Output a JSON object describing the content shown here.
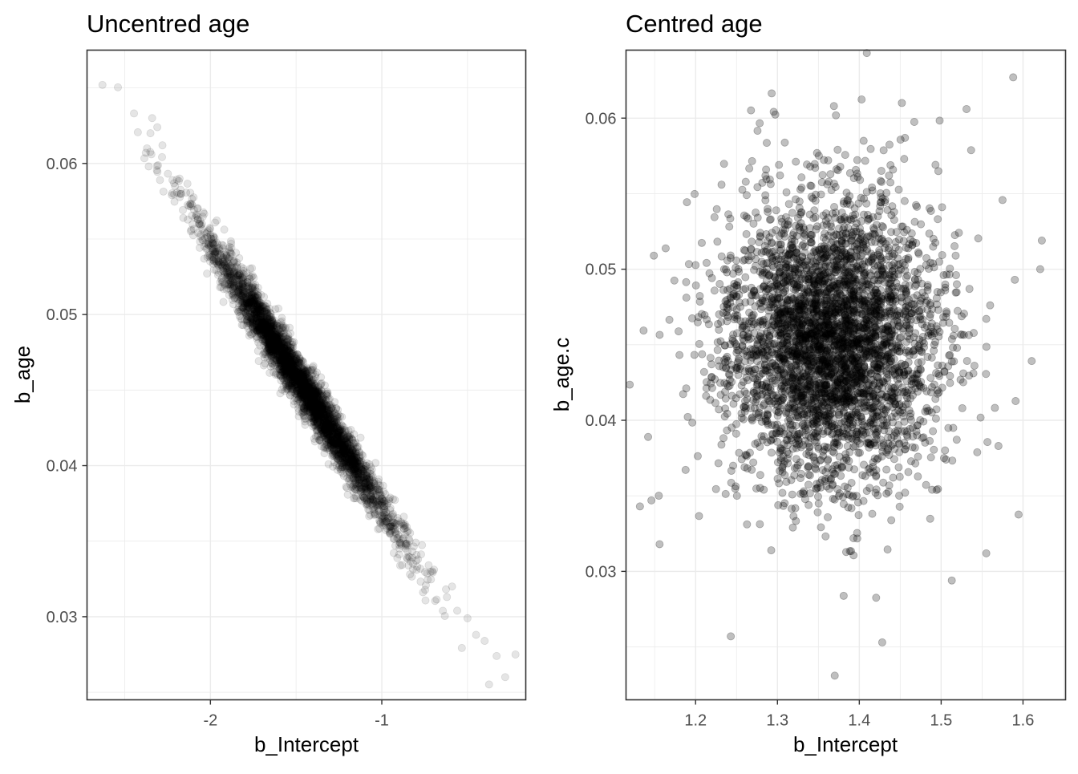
{
  "chart_data": [
    {
      "type": "scatter",
      "title": "Uncentred age",
      "xlabel": "b_Intercept",
      "ylabel": "b_age",
      "xlim": [
        -2.72,
        -0.16
      ],
      "ylim": [
        0.0245,
        0.0675
      ],
      "x_ticks": [
        -2,
        -1
      ],
      "x_tick_labels": [
        "-2",
        "-1"
      ],
      "y_ticks": [
        0.03,
        0.04,
        0.05,
        0.06
      ],
      "y_tick_labels": [
        "0.03",
        "0.04",
        "0.05",
        "0.06"
      ],
      "grid": true,
      "point_color": "#000000",
      "point_alpha": 0.1,
      "distribution": {
        "center": [
          -1.47,
          0.0454
        ],
        "n_points": 4000,
        "sd_x": 0.27,
        "sd_y": 0.0048,
        "correlation": -0.985
      },
      "points": [
        {
          "x": -2.63,
          "y": 0.0652
        },
        {
          "x": -2.34,
          "y": 0.063
        },
        {
          "x": -2.35,
          "y": 0.062
        },
        {
          "x": -2.31,
          "y": 0.0624
        },
        {
          "x": -2.37,
          "y": 0.061
        },
        {
          "x": -2.36,
          "y": 0.0598
        },
        {
          "x": -2.28,
          "y": 0.0612
        },
        {
          "x": -2.18,
          "y": 0.059
        },
        {
          "x": -0.62,
          "y": 0.0313
        },
        {
          "x": -0.59,
          "y": 0.032
        },
        {
          "x": -0.56,
          "y": 0.0304
        },
        {
          "x": -0.5,
          "y": 0.0299
        },
        {
          "x": -0.45,
          "y": 0.0288
        },
        {
          "x": -0.4,
          "y": 0.0284
        },
        {
          "x": -0.33,
          "y": 0.0274
        },
        {
          "x": -0.28,
          "y": 0.026
        },
        {
          "x": -0.22,
          "y": 0.0275
        }
      ]
    },
    {
      "type": "scatter",
      "title": "Centred age",
      "xlabel": "b_Intercept",
      "ylabel": "b_age.c",
      "xlim": [
        1.115,
        1.652
      ],
      "ylim": [
        0.0215,
        0.0645
      ],
      "x_ticks": [
        1.2,
        1.3,
        1.4,
        1.5,
        1.6
      ],
      "x_tick_labels": [
        "1.2",
        "1.3",
        "1.4",
        "1.5",
        "1.6"
      ],
      "y_ticks": [
        0.03,
        0.04,
        0.05,
        0.06
      ],
      "y_tick_labels": [
        "0.03",
        "0.04",
        "0.05",
        "0.06"
      ],
      "grid": true,
      "point_color": "#000000",
      "point_alpha": 0.25,
      "distribution": {
        "center": [
          1.364,
          0.0453
        ],
        "n_points": 4000,
        "sd_x": 0.065,
        "sd_y": 0.0048,
        "correlation": 0.0
      },
      "points": [
        {
          "x": 1.588,
          "y": 0.0627
        },
        {
          "x": 1.132,
          "y": 0.0343
        },
        {
          "x": 1.149,
          "y": 0.0509
        },
        {
          "x": 1.142,
          "y": 0.0389
        },
        {
          "x": 1.146,
          "y": 0.0347
        },
        {
          "x": 1.156,
          "y": 0.0318
        },
        {
          "x": 1.623,
          "y": 0.0519
        },
        {
          "x": 1.621,
          "y": 0.05
        },
        {
          "x": 1.37,
          "y": 0.0231
        },
        {
          "x": 1.428,
          "y": 0.0253
        },
        {
          "x": 1.243,
          "y": 0.0257
        },
        {
          "x": 1.369,
          "y": 0.0608
        },
        {
          "x": 1.452,
          "y": 0.061
        },
        {
          "x": 1.531,
          "y": 0.0606
        },
        {
          "x": 1.513,
          "y": 0.0294
        },
        {
          "x": 1.59,
          "y": 0.0493
        },
        {
          "x": 1.57,
          "y": 0.0383
        }
      ]
    }
  ]
}
